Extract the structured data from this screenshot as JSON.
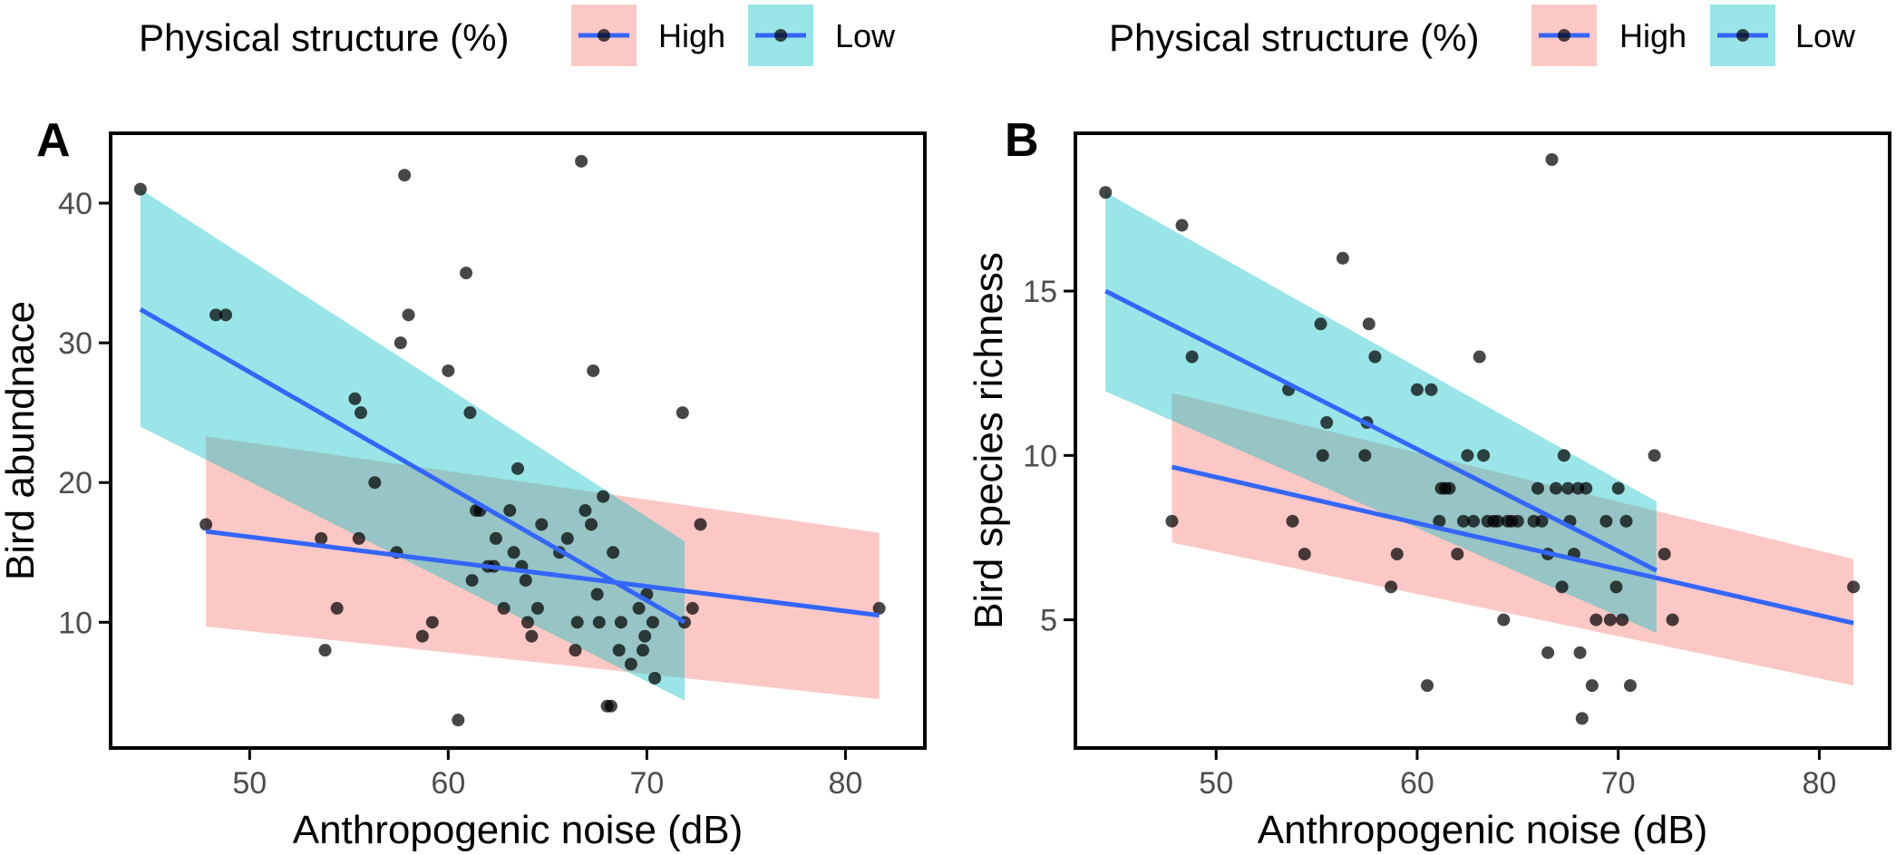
{
  "legend": {
    "title": "Physical structure (%)",
    "items": [
      {
        "label": "High",
        "fill": "#F8766D"
      },
      {
        "label": "Low",
        "fill": "#00BFC4"
      }
    ]
  },
  "colors": {
    "high_ribbon": "#F8766D",
    "low_ribbon": "#00BFC4",
    "fit_line": "#3366FF",
    "point": "#000000",
    "axis_text": "#4d4d4d"
  },
  "chart_data": [
    {
      "type": "scatter",
      "panel_label": "A",
      "xlabel": "Anthropogenic noise (dB)",
      "ylabel": "Bird abundnace",
      "xlim": [
        43,
        84
      ],
      "ylim": [
        1,
        45
      ],
      "xticks": [
        50,
        60,
        70,
        80
      ],
      "yticks": [
        10,
        20,
        30,
        40
      ],
      "points": [
        [
          44.5,
          41
        ],
        [
          48.3,
          32
        ],
        [
          48.8,
          32
        ],
        [
          47.8,
          17
        ],
        [
          53.6,
          16
        ],
        [
          53.8,
          8
        ],
        [
          54.4,
          11
        ],
        [
          55.3,
          26
        ],
        [
          55.5,
          16
        ],
        [
          55.6,
          25
        ],
        [
          56.3,
          20
        ],
        [
          57.4,
          15
        ],
        [
          57.6,
          30
        ],
        [
          57.8,
          42
        ],
        [
          58.0,
          32
        ],
        [
          58.7,
          9
        ],
        [
          59.2,
          10
        ],
        [
          60.0,
          28
        ],
        [
          60.5,
          3
        ],
        [
          60.9,
          35
        ],
        [
          61.1,
          25
        ],
        [
          61.2,
          13
        ],
        [
          61.4,
          18
        ],
        [
          61.6,
          18
        ],
        [
          62.0,
          14
        ],
        [
          62.3,
          14
        ],
        [
          62.4,
          16
        ],
        [
          62.8,
          11
        ],
        [
          63.1,
          18
        ],
        [
          63.3,
          15
        ],
        [
          63.5,
          21
        ],
        [
          63.7,
          14
        ],
        [
          63.9,
          13
        ],
        [
          64.0,
          10
        ],
        [
          64.2,
          9
        ],
        [
          64.5,
          11
        ],
        [
          64.7,
          17
        ],
        [
          65.6,
          15
        ],
        [
          66.0,
          16
        ],
        [
          66.4,
          8
        ],
        [
          66.5,
          10
        ],
        [
          66.7,
          43
        ],
        [
          66.9,
          18
        ],
        [
          67.2,
          17
        ],
        [
          67.3,
          28
        ],
        [
          67.5,
          12
        ],
        [
          67.6,
          10
        ],
        [
          67.8,
          19
        ],
        [
          68.0,
          4
        ],
        [
          68.2,
          4
        ],
        [
          68.3,
          15
        ],
        [
          68.6,
          8
        ],
        [
          68.7,
          10
        ],
        [
          69.2,
          7
        ],
        [
          69.6,
          11
        ],
        [
          69.8,
          8
        ],
        [
          69.9,
          9
        ],
        [
          70.0,
          12
        ],
        [
          70.3,
          10
        ],
        [
          70.4,
          6
        ],
        [
          71.8,
          25
        ],
        [
          71.9,
          10
        ],
        [
          72.3,
          11
        ],
        [
          72.7,
          17
        ],
        [
          81.7,
          11
        ]
      ],
      "fits": [
        {
          "group": "High",
          "x": [
            47.8,
            81.7
          ],
          "y": [
            16.5,
            10.5
          ],
          "lower": [
            9.7,
            4.5
          ],
          "upper": [
            23.3,
            16.4
          ]
        },
        {
          "group": "Low",
          "x": [
            44.5,
            71.9
          ],
          "y": [
            32.4,
            10.0
          ],
          "lower": [
            24.0,
            4.4
          ],
          "upper": [
            41.0,
            15.8
          ]
        }
      ]
    },
    {
      "type": "scatter",
      "panel_label": "B",
      "xlabel": "Anthropogenic noise (dB)",
      "ylabel": "Bird species richness",
      "xlim": [
        43,
        83.5
      ],
      "ylim": [
        1.1,
        19.8
      ],
      "xticks": [
        50,
        60,
        70,
        80
      ],
      "yticks": [
        5,
        10,
        15
      ],
      "points": [
        [
          44.5,
          18
        ],
        [
          47.8,
          8
        ],
        [
          48.3,
          17
        ],
        [
          48.8,
          13
        ],
        [
          53.6,
          12
        ],
        [
          53.8,
          8
        ],
        [
          54.4,
          7
        ],
        [
          55.2,
          14
        ],
        [
          55.3,
          10
        ],
        [
          55.5,
          11
        ],
        [
          56.3,
          16
        ],
        [
          57.4,
          10
        ],
        [
          57.5,
          11
        ],
        [
          57.6,
          14
        ],
        [
          57.9,
          13
        ],
        [
          58.7,
          6
        ],
        [
          59.0,
          7
        ],
        [
          60.0,
          12
        ],
        [
          60.5,
          3
        ],
        [
          60.7,
          12
        ],
        [
          61.1,
          8
        ],
        [
          61.2,
          9
        ],
        [
          61.4,
          9
        ],
        [
          61.6,
          9
        ],
        [
          62.0,
          7
        ],
        [
          62.3,
          8
        ],
        [
          62.5,
          10
        ],
        [
          62.8,
          8
        ],
        [
          63.1,
          13
        ],
        [
          63.3,
          10
        ],
        [
          63.5,
          8
        ],
        [
          63.8,
          8
        ],
        [
          64.0,
          8
        ],
        [
          64.3,
          5
        ],
        [
          64.5,
          8
        ],
        [
          64.7,
          8
        ],
        [
          65.0,
          8
        ],
        [
          65.8,
          8
        ],
        [
          66.0,
          9
        ],
        [
          66.2,
          8
        ],
        [
          66.5,
          4
        ],
        [
          66.5,
          7
        ],
        [
          66.7,
          19
        ],
        [
          66.9,
          9
        ],
        [
          67.2,
          6
        ],
        [
          67.3,
          10
        ],
        [
          67.5,
          9
        ],
        [
          67.6,
          8
        ],
        [
          67.8,
          7
        ],
        [
          68.0,
          9
        ],
        [
          68.2,
          2
        ],
        [
          68.1,
          4
        ],
        [
          68.4,
          9
        ],
        [
          68.7,
          3
        ],
        [
          68.9,
          5
        ],
        [
          69.4,
          8
        ],
        [
          69.6,
          5
        ],
        [
          69.9,
          6
        ],
        [
          70.0,
          9
        ],
        [
          70.2,
          5
        ],
        [
          70.4,
          8
        ],
        [
          70.6,
          3
        ],
        [
          71.8,
          10
        ],
        [
          72.3,
          7
        ],
        [
          72.7,
          5
        ],
        [
          81.7,
          6
        ]
      ],
      "fits": [
        {
          "group": "High",
          "x": [
            47.8,
            81.7
          ],
          "y": [
            9.65,
            4.9
          ],
          "lower": [
            7.35,
            3.0
          ],
          "upper": [
            11.9,
            6.85
          ]
        },
        {
          "group": "Low",
          "x": [
            44.5,
            71.9
          ],
          "y": [
            15.0,
            6.5
          ],
          "lower": [
            11.95,
            4.6
          ],
          "upper": [
            18.0,
            8.6
          ]
        }
      ]
    }
  ]
}
